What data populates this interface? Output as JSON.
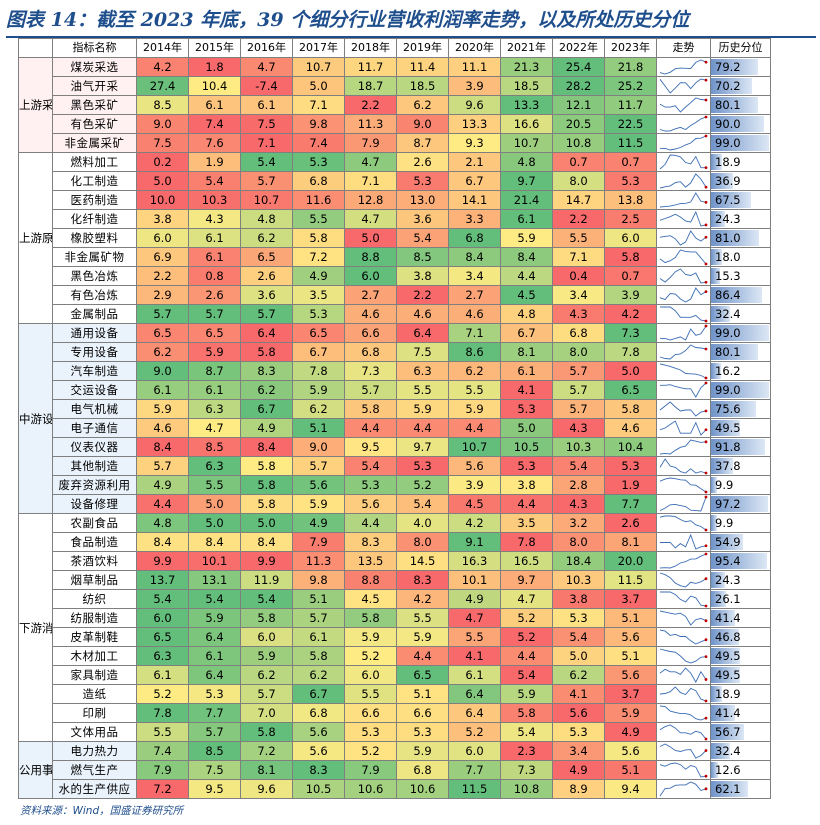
{
  "title": "图表 14：截至 2023 年底，39 个细分行业营收利润率走势，以及所处历史分位",
  "source": "资料来源：Wind，国盛证券研究所",
  "table": {
    "header_indicator": "指标名称",
    "years": [
      "2014年",
      "2015年",
      "2016年",
      "2017年",
      "2018年",
      "2019年",
      "2020年",
      "2021年",
      "2022年",
      "2023年"
    ],
    "header_trend": "走势",
    "header_percentile": "历史分位",
    "groups": [
      {
        "name": "上游采矿",
        "rows": [
          {
            "name": "煤炭采选",
            "values": [
              4.2,
              1.8,
              4.7,
              10.7,
              11.7,
              11.4,
              11.1,
              21.3,
              25.4,
              21.8
            ],
            "percentile": "79.2"
          },
          {
            "name": "油气开采",
            "values": [
              27.4,
              10.4,
              -7.4,
              5.0,
              18.7,
              18.5,
              3.9,
              18.5,
              28.2,
              25.2
            ],
            "percentile": "70.2"
          },
          {
            "name": "黑色采矿",
            "values": [
              8.5,
              6.1,
              6.1,
              7.1,
              2.2,
              6.2,
              9.6,
              13.3,
              12.1,
              11.7
            ],
            "percentile": "80.1"
          },
          {
            "name": "有色采矿",
            "values": [
              9.0,
              7.4,
              7.5,
              9.8,
              11.3,
              9.0,
              13.3,
              16.6,
              20.5,
              22.5
            ],
            "percentile": "90.0"
          },
          {
            "name": "非金属采矿",
            "values": [
              7.5,
              7.6,
              7.1,
              7.4,
              7.9,
              8.7,
              9.3,
              10.7,
              10.8,
              11.5
            ],
            "percentile": "99.0"
          }
        ]
      },
      {
        "name": "上游原材料",
        "rows": [
          {
            "name": "燃料加工",
            "values": [
              0.2,
              1.9,
              5.4,
              5.3,
              4.7,
              2.6,
              2.1,
              4.8,
              0.7,
              0.7
            ],
            "percentile": "18.9"
          },
          {
            "name": "化工制造",
            "values": [
              5.0,
              5.4,
              5.7,
              6.8,
              7.1,
              5.3,
              6.7,
              9.7,
              8.0,
              5.3
            ],
            "percentile": "36.9"
          },
          {
            "name": "医药制造",
            "values": [
              10.0,
              10.3,
              10.7,
              11.6,
              12.8,
              13.0,
              14.1,
              21.4,
              14.7,
              13.8
            ],
            "percentile": "67.5"
          },
          {
            "name": "化纤制造",
            "values": [
              3.8,
              4.3,
              4.8,
              5.5,
              4.7,
              3.6,
              3.3,
              6.1,
              2.2,
              2.5
            ],
            "percentile": "24.3"
          },
          {
            "name": "橡胶塑料",
            "values": [
              6.0,
              6.1,
              6.2,
              5.8,
              5.0,
              5.4,
              6.8,
              5.9,
              5.5,
              6.0
            ],
            "percentile": "81.0"
          },
          {
            "name": "非金属矿物",
            "values": [
              6.9,
              6.1,
              6.5,
              7.2,
              8.8,
              8.5,
              8.4,
              8.4,
              7.1,
              5.8
            ],
            "percentile": "18.0"
          },
          {
            "name": "黑色冶炼",
            "values": [
              2.2,
              0.8,
              2.6,
              4.9,
              6.0,
              3.8,
              3.4,
              4.4,
              0.4,
              0.7
            ],
            "percentile": "15.3"
          },
          {
            "name": "有色冶炼",
            "values": [
              2.9,
              2.6,
              3.6,
              3.5,
              2.7,
              2.2,
              2.7,
              4.5,
              3.4,
              3.9
            ],
            "percentile": "86.4"
          },
          {
            "name": "金属制品",
            "values": [
              5.7,
              5.7,
              5.7,
              5.3,
              4.6,
              4.6,
              4.6,
              4.8,
              4.3,
              4.2
            ],
            "percentile": "32.4"
          }
        ]
      },
      {
        "name": "中游设备",
        "rows": [
          {
            "name": "通用设备",
            "values": [
              6.5,
              6.5,
              6.4,
              6.5,
              6.6,
              6.4,
              7.1,
              6.7,
              6.8,
              7.3
            ],
            "percentile": "99.0"
          },
          {
            "name": "专用设备",
            "values": [
              6.2,
              5.9,
              5.8,
              6.7,
              6.8,
              7.5,
              8.6,
              8.1,
              8.0,
              7.8
            ],
            "percentile": "80.1"
          },
          {
            "name": "汽车制造",
            "values": [
              9.0,
              8.7,
              8.3,
              7.8,
              7.3,
              6.3,
              6.2,
              6.1,
              5.7,
              5.0
            ],
            "percentile": "16.2"
          },
          {
            "name": "交运设备",
            "values": [
              6.1,
              6.1,
              6.2,
              5.9,
              5.7,
              5.5,
              5.5,
              4.1,
              5.7,
              6.5
            ],
            "percentile": "99.0"
          },
          {
            "name": "电气机械",
            "values": [
              5.9,
              6.3,
              6.7,
              6.2,
              5.8,
              5.9,
              5.9,
              5.3,
              5.7,
              5.8
            ],
            "percentile": "75.6"
          },
          {
            "name": "电子通信",
            "values": [
              4.6,
              4.7,
              4.9,
              5.1,
              4.4,
              4.4,
              4.4,
              5.0,
              4.3,
              4.6
            ],
            "percentile": "49.5"
          },
          {
            "name": "仪表仪器",
            "values": [
              8.4,
              8.5,
              8.4,
              9.0,
              9.5,
              9.7,
              10.7,
              10.5,
              10.3,
              10.4
            ],
            "percentile": "91.8"
          },
          {
            "name": "其他制造",
            "values": [
              5.7,
              6.3,
              5.8,
              5.7,
              5.4,
              5.3,
              5.6,
              5.3,
              5.4,
              5.3
            ],
            "percentile": "37.8"
          },
          {
            "name": "废弃资源利用",
            "values": [
              4.9,
              5.5,
              5.8,
              5.6,
              5.3,
              5.2,
              3.9,
              3.8,
              2.8,
              1.9
            ],
            "percentile": "9.9"
          },
          {
            "name": "设备修理",
            "values": [
              4.4,
              5.0,
              5.8,
              5.9,
              5.6,
              5.4,
              4.5,
              4.4,
              4.3,
              7.7
            ],
            "percentile": "97.2"
          }
        ]
      },
      {
        "name": "下游消费",
        "rows": [
          {
            "name": "农副食品",
            "values": [
              4.8,
              5.0,
              5.0,
              4.9,
              4.4,
              4.0,
              4.2,
              3.5,
              3.2,
              2.6
            ],
            "percentile": "9.9"
          },
          {
            "name": "食品制造",
            "values": [
              8.4,
              8.4,
              8.4,
              7.9,
              8.3,
              8.0,
              9.1,
              7.8,
              8.0,
              8.1
            ],
            "percentile": "54.9"
          },
          {
            "name": "茶酒饮料",
            "values": [
              9.9,
              10.1,
              9.9,
              11.3,
              13.5,
              14.5,
              16.3,
              16.5,
              18.4,
              20.0
            ],
            "percentile": "95.4"
          },
          {
            "name": "烟草制品",
            "values": [
              13.7,
              13.1,
              11.9,
              9.8,
              8.8,
              8.3,
              10.1,
              9.7,
              10.3,
              11.5
            ],
            "percentile": "24.3"
          },
          {
            "name": "纺织",
            "values": [
              5.4,
              5.4,
              5.4,
              5.1,
              4.5,
              4.2,
              4.9,
              4.7,
              3.8,
              3.7
            ],
            "percentile": "26.1"
          },
          {
            "name": "纺服制造",
            "values": [
              6.0,
              5.9,
              5.8,
              5.7,
              5.8,
              5.5,
              4.7,
              5.2,
              5.3,
              5.1
            ],
            "percentile": "41.4"
          },
          {
            "name": "皮革制鞋",
            "values": [
              6.5,
              6.4,
              6.0,
              6.1,
              5.9,
              5.9,
              5.5,
              5.2,
              5.4,
              5.6
            ],
            "percentile": "46.8"
          },
          {
            "name": "木材加工",
            "values": [
              6.3,
              6.1,
              5.9,
              5.8,
              5.2,
              4.4,
              4.1,
              4.4,
              5.0,
              5.1
            ],
            "percentile": "49.5"
          },
          {
            "name": "家具制造",
            "values": [
              6.1,
              6.4,
              6.2,
              6.2,
              6.0,
              6.5,
              6.1,
              5.4,
              6.2,
              5.6
            ],
            "percentile": "49.5"
          },
          {
            "name": "造纸",
            "values": [
              5.2,
              5.3,
              5.7,
              6.7,
              5.5,
              5.1,
              6.4,
              5.9,
              4.1,
              3.7
            ],
            "percentile": "18.9"
          },
          {
            "name": "印刷",
            "values": [
              7.8,
              7.7,
              7.0,
              6.8,
              6.6,
              6.6,
              6.4,
              5.8,
              5.6,
              5.9
            ],
            "percentile": "41.4"
          },
          {
            "name": "文体用品",
            "values": [
              5.5,
              5.7,
              5.8,
              5.6,
              5.3,
              5.3,
              5.2,
              5.4,
              5.3,
              4.9
            ],
            "percentile": "56.7"
          }
        ]
      },
      {
        "name": "公用事业",
        "rows": [
          {
            "name": "电力热力",
            "values": [
              7.4,
              8.5,
              7.2,
              5.6,
              5.2,
              5.9,
              6.0,
              2.3,
              3.4,
              5.6
            ],
            "percentile": "32.4"
          },
          {
            "name": "燃气生产",
            "values": [
              7.9,
              7.5,
              8.1,
              8.3,
              7.9,
              6.8,
              7.7,
              7.3,
              4.9,
              5.1
            ],
            "percentile": "12.6"
          },
          {
            "name": "水的生产供应",
            "values": [
              7.2,
              9.5,
              9.6,
              10.5,
              10.6,
              10.6,
              11.5,
              10.8,
              8.9,
              9.4
            ],
            "percentile": "62.1"
          }
        ]
      }
    ]
  },
  "colors": {
    "low": "#f8696b",
    "mid": "#ffeb84",
    "high": "#63be7b",
    "title": "#1f4e8c",
    "trend_line": "#3b6db5",
    "trend_marker": "#c00000"
  }
}
